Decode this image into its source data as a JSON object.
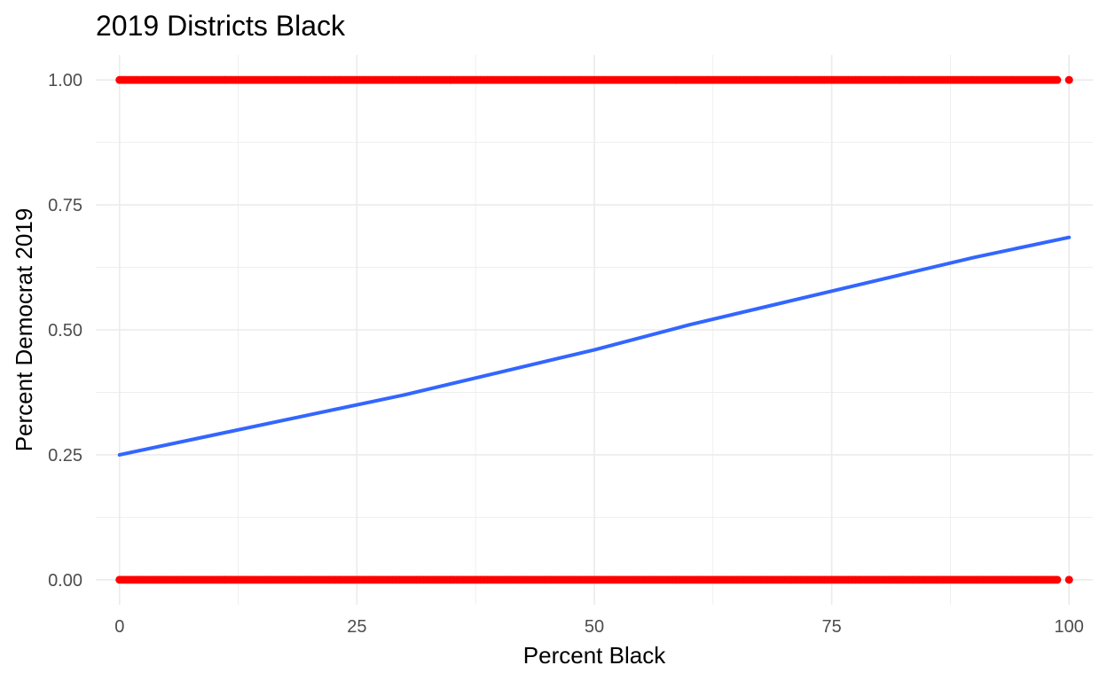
{
  "chart_data": {
    "type": "scatter",
    "title": "2019 Districts Black",
    "xlabel": "Percent Black",
    "ylabel": "Percent Democrat 2019",
    "xlim": [
      -2.5,
      102.5
    ],
    "ylim": [
      -0.05,
      1.05
    ],
    "x_ticks": [
      0,
      25,
      50,
      75,
      100
    ],
    "x_tick_labels": [
      "0",
      "25",
      "50",
      "75",
      "100"
    ],
    "y_ticks": [
      0,
      0.25,
      0.5,
      0.75,
      1
    ],
    "y_tick_labels": [
      "0.00",
      "0.25",
      "0.50",
      "0.75",
      "1.00"
    ],
    "grid": true,
    "legend": "none",
    "colors": {
      "points": "#ff0000",
      "fit_line": "#3366ff",
      "grid": "#ebebeb"
    },
    "series": [
      {
        "type": "scatter",
        "points_description": "binary outcome: dense points spanning x 0–100 at y=0 and at y=1",
        "y_levels": [
          0,
          1
        ],
        "x_range": [
          0,
          100
        ],
        "sparse_tail_x": [
          98.8,
          100
        ]
      },
      {
        "type": "line",
        "x": [
          0,
          10,
          20,
          30,
          40,
          50,
          60,
          70,
          80,
          90,
          100
        ],
        "y": [
          0.25,
          0.29,
          0.33,
          0.37,
          0.415,
          0.46,
          0.51,
          0.555,
          0.6,
          0.645,
          0.685
        ]
      }
    ]
  }
}
